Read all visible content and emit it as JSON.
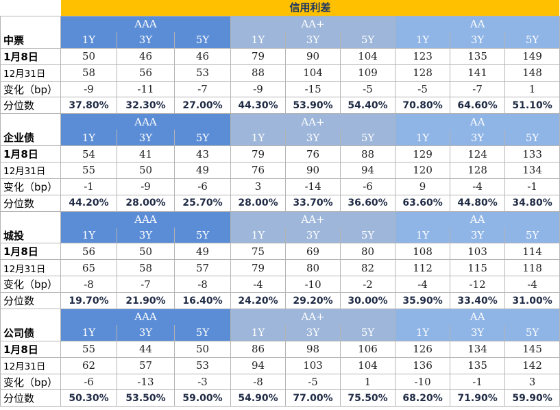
{
  "title": "信用利差",
  "groups": [
    "AAA",
    "AA+",
    "AA"
  ],
  "tenors": [
    "1Y",
    "3Y",
    "5Y"
  ],
  "colors": {
    "title_bg": "#ffc000",
    "aaa_bg": "#5b8dd6",
    "aap_bg": "#9db6da",
    "aa_bg": "#8fb4e6"
  },
  "row_labels": {
    "jan8": "1月8日",
    "dec31": "12月31日",
    "change": "变化（bp）",
    "percentile": "分位数"
  },
  "sections": [
    {
      "name": "中票",
      "jan8": [
        "50",
        "46",
        "46",
        "79",
        "90",
        "104",
        "123",
        "135",
        "149"
      ],
      "dec31": [
        "58",
        "56",
        "53",
        "88",
        "104",
        "109",
        "128",
        "141",
        "148"
      ],
      "change": [
        "-9",
        "-11",
        "-7",
        "-9",
        "-15",
        "-5",
        "-5",
        "-7",
        "1"
      ],
      "percentile": [
        "37.80%",
        "32.30%",
        "27.00%",
        "44.30%",
        "53.90%",
        "54.40%",
        "70.80%",
        "64.60%",
        "51.10%"
      ]
    },
    {
      "name": "企业债",
      "jan8": [
        "54",
        "41",
        "43",
        "79",
        "76",
        "88",
        "129",
        "124",
        "133"
      ],
      "dec31": [
        "55",
        "50",
        "49",
        "76",
        "90",
        "94",
        "120",
        "128",
        "134"
      ],
      "change": [
        "-1",
        "-9",
        "-6",
        "3",
        "-14",
        "-6",
        "9",
        "-4",
        "-1"
      ],
      "percentile": [
        "44.20%",
        "28.00%",
        "25.70%",
        "28.00%",
        "33.70%",
        "36.60%",
        "63.60%",
        "44.80%",
        "34.80%"
      ]
    },
    {
      "name": "城投",
      "jan8": [
        "56",
        "50",
        "49",
        "75",
        "69",
        "80",
        "108",
        "103",
        "114"
      ],
      "dec31": [
        "65",
        "58",
        "57",
        "79",
        "80",
        "82",
        "112",
        "115",
        "118"
      ],
      "change": [
        "-8",
        "-7",
        "-8",
        "-4",
        "-10",
        "-2",
        "-4",
        "-12",
        "-4"
      ],
      "percentile": [
        "19.70%",
        "21.90%",
        "16.40%",
        "24.20%",
        "29.20%",
        "30.00%",
        "35.90%",
        "33.40%",
        "31.00%"
      ]
    },
    {
      "name": "公司债",
      "jan8": [
        "55",
        "44",
        "50",
        "86",
        "98",
        "106",
        "126",
        "134",
        "145"
      ],
      "dec31": [
        "62",
        "57",
        "53",
        "94",
        "103",
        "104",
        "136",
        "135",
        "142"
      ],
      "change": [
        "-6",
        "-13",
        "-3",
        "-8",
        "-5",
        "1",
        "-10",
        "-1",
        "3"
      ],
      "percentile": [
        "50.30%",
        "53.50%",
        "59.00%",
        "54.90%",
        "77.00%",
        "75.50%",
        "68.20%",
        "71.90%",
        "59.90%"
      ]
    }
  ]
}
